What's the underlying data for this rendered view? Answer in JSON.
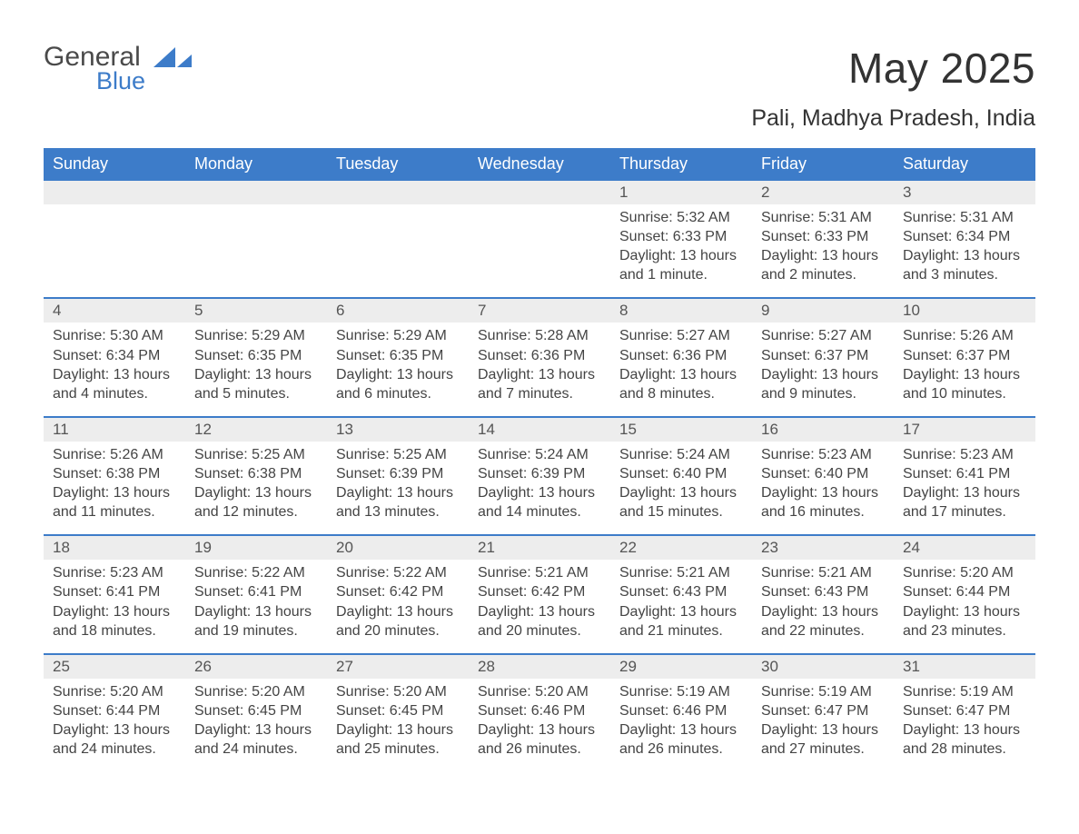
{
  "brand": {
    "word1": "General",
    "word2": "Blue"
  },
  "colors": {
    "accent": "#3d7cc9",
    "row_bg": "#ededed",
    "text": "#333333",
    "body_text": "#444444",
    "page_bg": "#ffffff"
  },
  "title": "May 2025",
  "subtitle": "Pali, Madhya Pradesh, India",
  "days_of_week": [
    "Sunday",
    "Monday",
    "Tuesday",
    "Wednesday",
    "Thursday",
    "Friday",
    "Saturday"
  ],
  "labels": {
    "sunrise": "Sunrise:",
    "sunset": "Sunset:",
    "daylight": "Daylight:"
  },
  "weeks": [
    [
      null,
      null,
      null,
      null,
      {
        "d": "1",
        "sunrise": "5:32 AM",
        "sunset": "6:33 PM",
        "daylight": "13 hours and 1 minute."
      },
      {
        "d": "2",
        "sunrise": "5:31 AM",
        "sunset": "6:33 PM",
        "daylight": "13 hours and 2 minutes."
      },
      {
        "d": "3",
        "sunrise": "5:31 AM",
        "sunset": "6:34 PM",
        "daylight": "13 hours and 3 minutes."
      }
    ],
    [
      {
        "d": "4",
        "sunrise": "5:30 AM",
        "sunset": "6:34 PM",
        "daylight": "13 hours and 4 minutes."
      },
      {
        "d": "5",
        "sunrise": "5:29 AM",
        "sunset": "6:35 PM",
        "daylight": "13 hours and 5 minutes."
      },
      {
        "d": "6",
        "sunrise": "5:29 AM",
        "sunset": "6:35 PM",
        "daylight": "13 hours and 6 minutes."
      },
      {
        "d": "7",
        "sunrise": "5:28 AM",
        "sunset": "6:36 PM",
        "daylight": "13 hours and 7 minutes."
      },
      {
        "d": "8",
        "sunrise": "5:27 AM",
        "sunset": "6:36 PM",
        "daylight": "13 hours and 8 minutes."
      },
      {
        "d": "9",
        "sunrise": "5:27 AM",
        "sunset": "6:37 PM",
        "daylight": "13 hours and 9 minutes."
      },
      {
        "d": "10",
        "sunrise": "5:26 AM",
        "sunset": "6:37 PM",
        "daylight": "13 hours and 10 minutes."
      }
    ],
    [
      {
        "d": "11",
        "sunrise": "5:26 AM",
        "sunset": "6:38 PM",
        "daylight": "13 hours and 11 minutes."
      },
      {
        "d": "12",
        "sunrise": "5:25 AM",
        "sunset": "6:38 PM",
        "daylight": "13 hours and 12 minutes."
      },
      {
        "d": "13",
        "sunrise": "5:25 AM",
        "sunset": "6:39 PM",
        "daylight": "13 hours and 13 minutes."
      },
      {
        "d": "14",
        "sunrise": "5:24 AM",
        "sunset": "6:39 PM",
        "daylight": "13 hours and 14 minutes."
      },
      {
        "d": "15",
        "sunrise": "5:24 AM",
        "sunset": "6:40 PM",
        "daylight": "13 hours and 15 minutes."
      },
      {
        "d": "16",
        "sunrise": "5:23 AM",
        "sunset": "6:40 PM",
        "daylight": "13 hours and 16 minutes."
      },
      {
        "d": "17",
        "sunrise": "5:23 AM",
        "sunset": "6:41 PM",
        "daylight": "13 hours and 17 minutes."
      }
    ],
    [
      {
        "d": "18",
        "sunrise": "5:23 AM",
        "sunset": "6:41 PM",
        "daylight": "13 hours and 18 minutes."
      },
      {
        "d": "19",
        "sunrise": "5:22 AM",
        "sunset": "6:41 PM",
        "daylight": "13 hours and 19 minutes."
      },
      {
        "d": "20",
        "sunrise": "5:22 AM",
        "sunset": "6:42 PM",
        "daylight": "13 hours and 20 minutes."
      },
      {
        "d": "21",
        "sunrise": "5:21 AM",
        "sunset": "6:42 PM",
        "daylight": "13 hours and 20 minutes."
      },
      {
        "d": "22",
        "sunrise": "5:21 AM",
        "sunset": "6:43 PM",
        "daylight": "13 hours and 21 minutes."
      },
      {
        "d": "23",
        "sunrise": "5:21 AM",
        "sunset": "6:43 PM",
        "daylight": "13 hours and 22 minutes."
      },
      {
        "d": "24",
        "sunrise": "5:20 AM",
        "sunset": "6:44 PM",
        "daylight": "13 hours and 23 minutes."
      }
    ],
    [
      {
        "d": "25",
        "sunrise": "5:20 AM",
        "sunset": "6:44 PM",
        "daylight": "13 hours and 24 minutes."
      },
      {
        "d": "26",
        "sunrise": "5:20 AM",
        "sunset": "6:45 PM",
        "daylight": "13 hours and 24 minutes."
      },
      {
        "d": "27",
        "sunrise": "5:20 AM",
        "sunset": "6:45 PM",
        "daylight": "13 hours and 25 minutes."
      },
      {
        "d": "28",
        "sunrise": "5:20 AM",
        "sunset": "6:46 PM",
        "daylight": "13 hours and 26 minutes."
      },
      {
        "d": "29",
        "sunrise": "5:19 AM",
        "sunset": "6:46 PM",
        "daylight": "13 hours and 26 minutes."
      },
      {
        "d": "30",
        "sunrise": "5:19 AM",
        "sunset": "6:47 PM",
        "daylight": "13 hours and 27 minutes."
      },
      {
        "d": "31",
        "sunrise": "5:19 AM",
        "sunset": "6:47 PM",
        "daylight": "13 hours and 28 minutes."
      }
    ]
  ]
}
